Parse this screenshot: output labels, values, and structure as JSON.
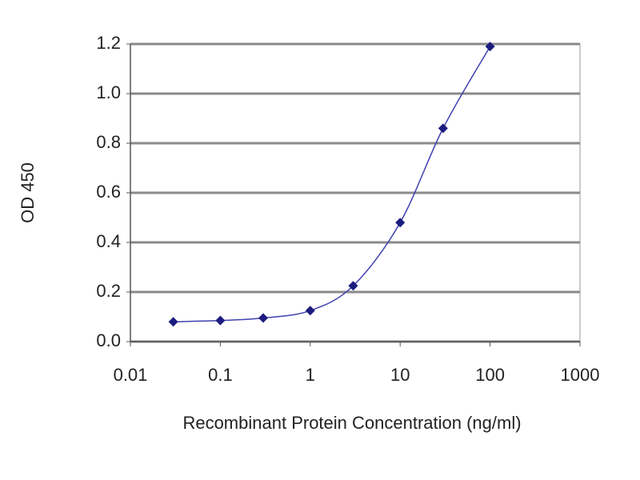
{
  "chart_data": {
    "type": "line",
    "x_label": "Recombinant Protein Concentration (ng/ml)",
    "y_label": "OD 450",
    "x": [
      0.03,
      0.1,
      0.3,
      1,
      3,
      10,
      30,
      100
    ],
    "series": [
      {
        "name": "OD 450",
        "color": "#1c1c80",
        "values": [
          0.08,
          0.085,
          0.095,
          0.125,
          0.225,
          0.48,
          0.86,
          1.19
        ]
      }
    ],
    "xscale": "log",
    "xlim": [
      0.01,
      1000
    ],
    "xticks": [
      0.01,
      0.1,
      1,
      10,
      100,
      1000
    ],
    "ylim": [
      0,
      1.2
    ],
    "yticks": [
      {
        "value": 0,
        "label": "0.0"
      },
      0.2,
      0.4,
      0.6,
      0.8,
      {
        "value": 1,
        "label": "1.0"
      },
      1.2
    ],
    "grid": true
  }
}
